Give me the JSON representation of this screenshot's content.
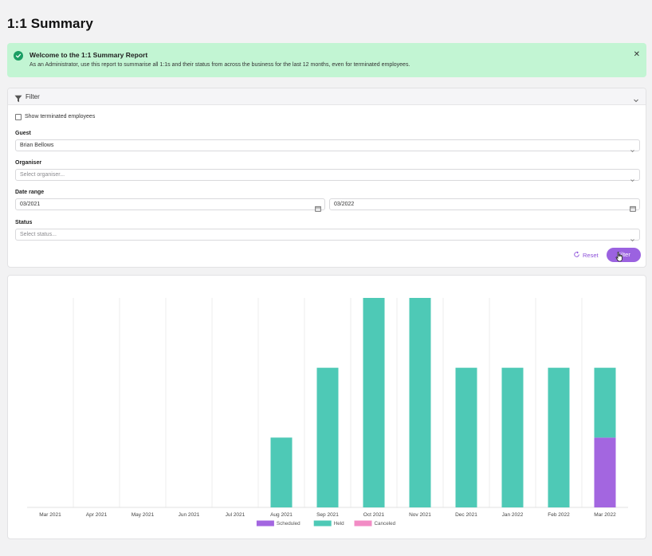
{
  "page": {
    "title": "1:1 Summary"
  },
  "banner": {
    "title": "Welcome to the 1:1 Summary Report",
    "text": "As an Administrator, use this report to summarise all 1:1s and their status from across the business for the last 12 months, even for terminated employees.",
    "close_icon": "close-icon"
  },
  "filter": {
    "header": "Filter",
    "show_terminated": "Show terminated employees",
    "show_terminated_checked": false,
    "guest_label": "Guest",
    "guest_value": "Brian Bellows",
    "organiser_label": "Organiser",
    "organiser_placeholder": "Select organiser...",
    "date_label": "Date range",
    "date_from": "03/2021",
    "date_to": "03/2022",
    "status_label": "Status",
    "status_placeholder": "Select status...",
    "reset_label": "Reset",
    "filter_label": "Filter"
  },
  "colors": {
    "scheduled": "#a366e0",
    "held": "#4ec9b6",
    "canceled": "#f28cc5",
    "accent": "#9b62e0",
    "banner_bg": "#c2f5d3"
  },
  "chart_data": {
    "type": "bar",
    "stacked": true,
    "categories": [
      "Mar 2021",
      "Apr 2021",
      "May 2021",
      "Jun 2021",
      "Jul 2021",
      "Aug 2021",
      "Sep 2021",
      "Oct 2021",
      "Nov 2021",
      "Dec 2021",
      "Jan 2022",
      "Feb 2022",
      "Mar 2022"
    ],
    "series": [
      {
        "name": "Scheduled",
        "color": "#a366e0",
        "values": [
          0,
          0,
          0,
          0,
          0,
          0,
          0,
          0,
          0,
          0,
          0,
          0,
          1
        ]
      },
      {
        "name": "Held",
        "color": "#4ec9b6",
        "values": [
          0,
          0,
          0,
          0,
          0,
          1,
          2,
          3,
          3,
          2,
          2,
          2,
          1
        ]
      },
      {
        "name": "Canceled",
        "color": "#f28cc5",
        "values": [
          0,
          0,
          0,
          0,
          0,
          0,
          0,
          0,
          0,
          0,
          0,
          0,
          0
        ]
      }
    ],
    "ylim": [
      0,
      3
    ],
    "grid": "vertical",
    "legend": "bottom"
  }
}
